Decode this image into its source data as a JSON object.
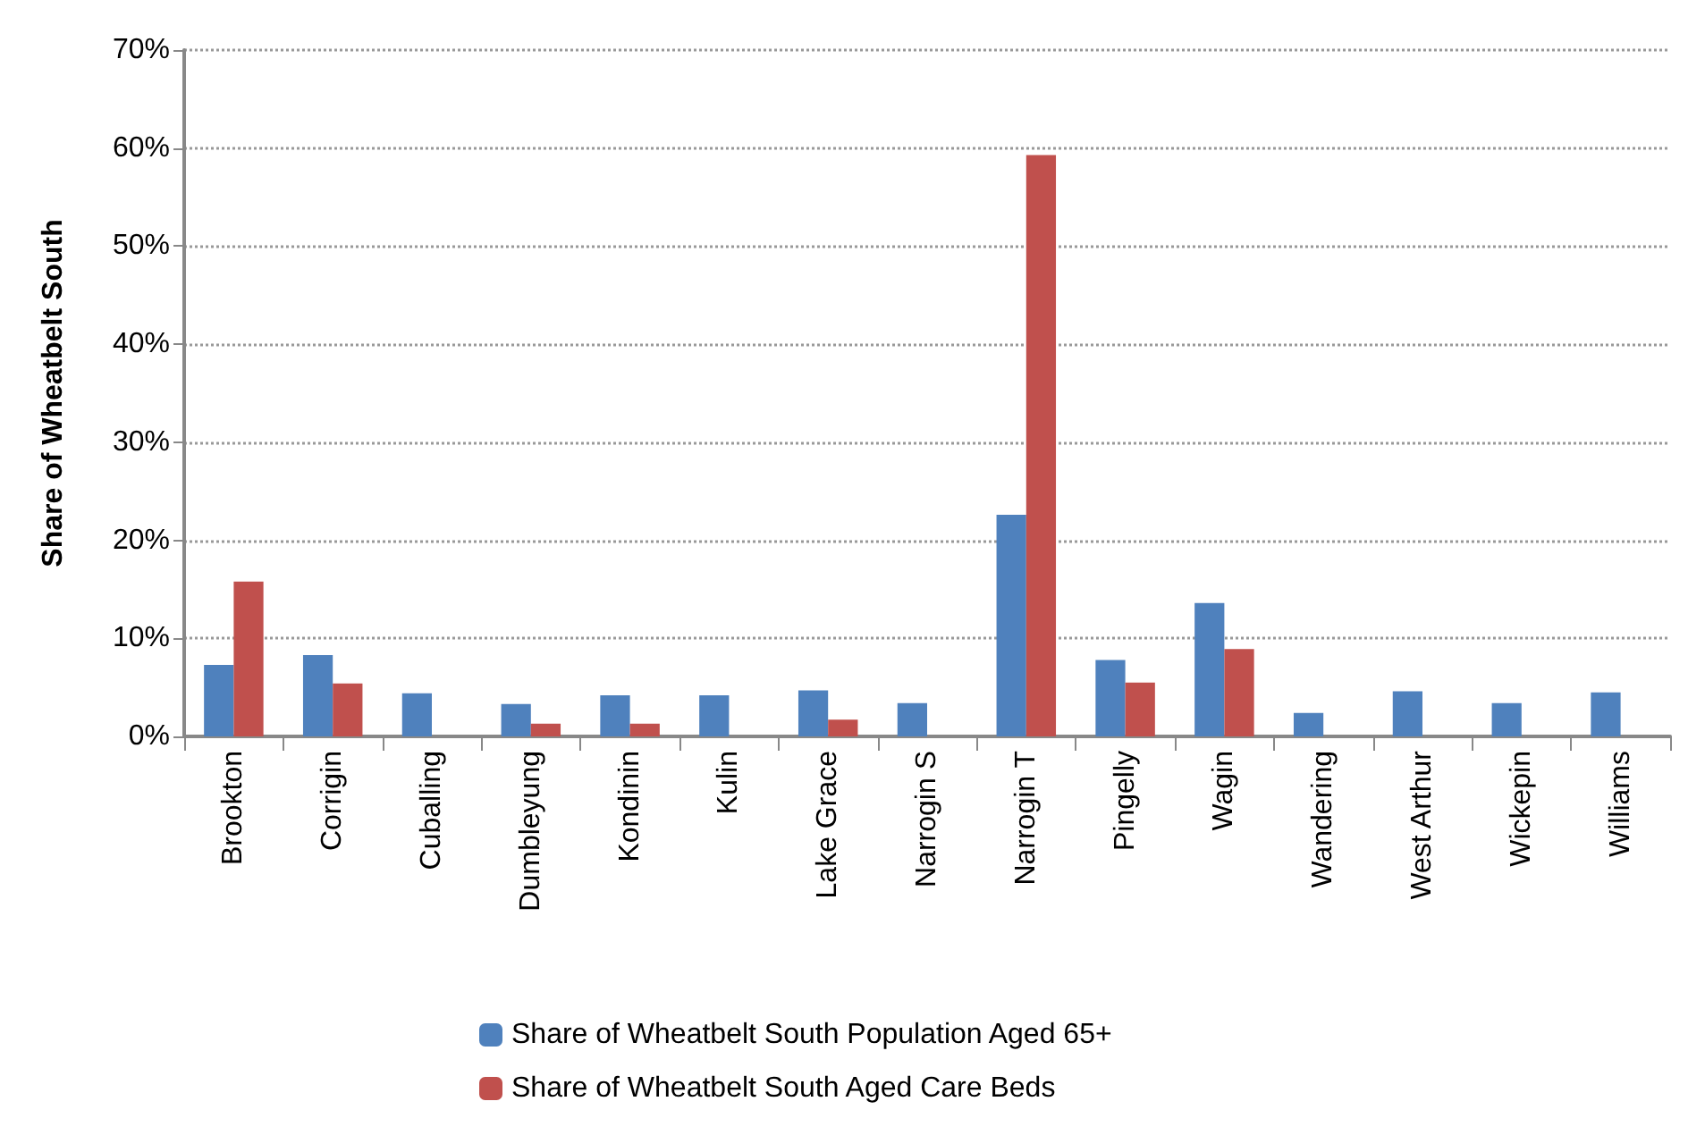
{
  "chart_data": {
    "type": "bar",
    "ylabel": "Share of Wheatbelt South",
    "categories": [
      "Brookton",
      "Corrigin",
      "Cuballing",
      "Dumbleyung",
      "Kondinin",
      "Kulin",
      "Lake Grace",
      "Narrogin S",
      "Narrogin T",
      "Pingelly",
      "Wagin",
      "Wandering",
      "West Arthur",
      "Wickepin",
      "Williams"
    ],
    "series": [
      {
        "name": "Share of Wheatbelt South Population Aged 65+",
        "color": "#4f81bd",
        "values": [
          7.3,
          8.3,
          4.4,
          3.3,
          4.2,
          4.2,
          4.7,
          3.4,
          22.6,
          7.8,
          13.6,
          2.4,
          4.6,
          3.4,
          4.5
        ]
      },
      {
        "name": "Share of Wheatbelt South Aged Care Beds",
        "color": "#c0504d",
        "values": [
          15.8,
          5.4,
          0,
          1.3,
          1.3,
          0,
          1.7,
          0,
          59.3,
          5.5,
          8.9,
          0,
          0,
          0,
          0
        ]
      }
    ],
    "ylim": [
      0,
      70
    ],
    "yticks": [
      {
        "value": 0,
        "label": "0%"
      },
      {
        "value": 10,
        "label": "10%"
      },
      {
        "value": 20,
        "label": "20%"
      },
      {
        "value": 30,
        "label": "30%"
      },
      {
        "value": 40,
        "label": "40%"
      },
      {
        "value": 50,
        "label": "50%"
      },
      {
        "value": 60,
        "label": "60%"
      },
      {
        "value": 70,
        "label": "70%"
      }
    ],
    "grid": "y",
    "legend": "bottom"
  }
}
